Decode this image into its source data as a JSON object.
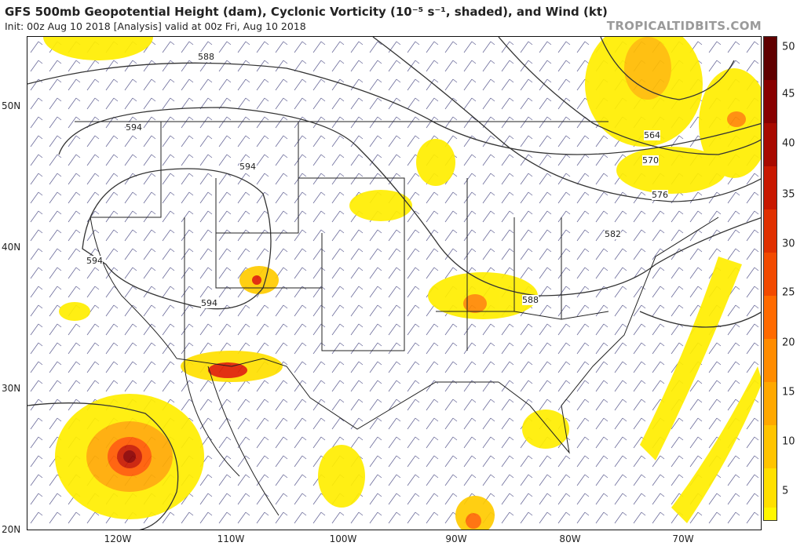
{
  "header": {
    "title": "GFS 500mb Geopotential Height (dam), Cyclonic Vorticity (10⁻⁵ s⁻¹, shaded), and Wind (kt)",
    "subtitle": "Init: 00z Aug 10 2018   [Analysis]   valid at 00z Fri, Aug 10 2018",
    "brand": "TROPICALTIDBITS.COM"
  },
  "map": {
    "lat_labels": [
      "50N",
      "40N",
      "30N",
      "20N"
    ],
    "lon_labels": [
      "120W",
      "110W",
      "100W",
      "90W",
      "80W",
      "70W"
    ],
    "contour_labels": [
      "588",
      "594",
      "594",
      "594",
      "594",
      "564",
      "570",
      "576",
      "582",
      "588"
    ]
  },
  "colorbar": {
    "labels": [
      "50",
      "45",
      "40",
      "35",
      "30",
      "25",
      "20",
      "15",
      "10",
      "5"
    ],
    "colors": [
      "#fff700",
      "#ffe000",
      "#ffc400",
      "#ffa800",
      "#ff8c00",
      "#ff6a00",
      "#f24a00",
      "#e03000",
      "#c81800",
      "#a80a00",
      "#880000",
      "#600000"
    ]
  },
  "colors": {
    "vort_low": "#ffee00",
    "vort_mid": "#ffaa00",
    "vort_high": "#e02000",
    "vort_peak": "#8b0000",
    "barb": "#6b6b9a",
    "border": "#222222"
  }
}
